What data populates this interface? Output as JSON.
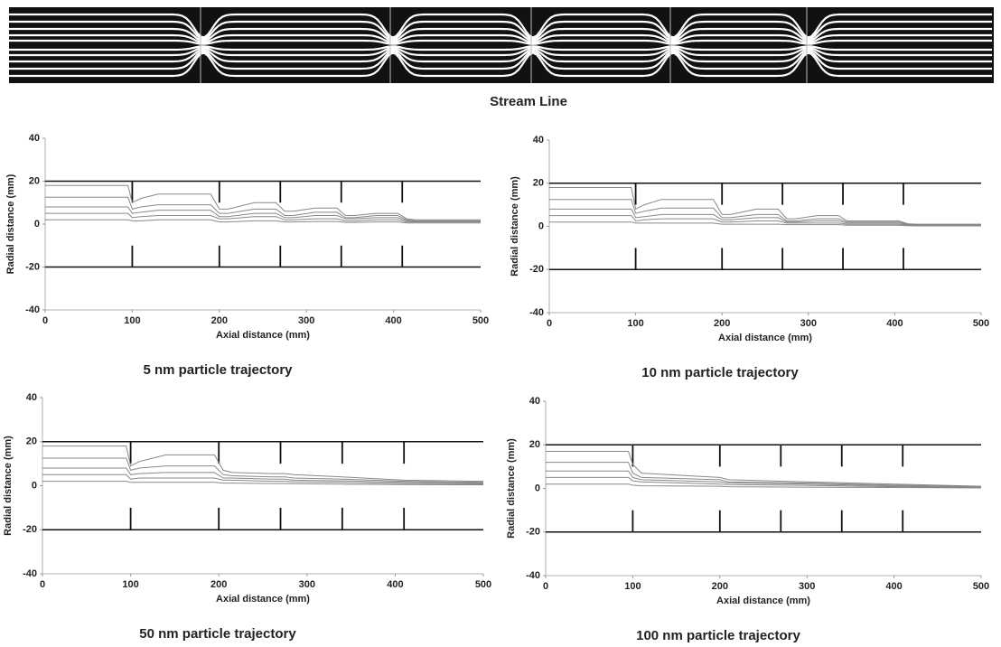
{
  "stream_line": {
    "caption": "Stream Line"
  },
  "chart_data": [
    {
      "type": "line",
      "title": "5 nm particle trajectory",
      "xlabel": "Axial distance (mm)",
      "ylabel": "Radial distance (mm)",
      "xlim": [
        0,
        500
      ],
      "ylim": [
        -40,
        40
      ],
      "xticks": [
        0,
        100,
        200,
        300,
        400,
        500
      ],
      "yticks": [
        -40,
        -20,
        0,
        20,
        40
      ],
      "wall_y": [
        20,
        -20
      ],
      "orifice_x": [
        100,
        200,
        270,
        340,
        410
      ],
      "orifice_inner": 10,
      "x": [
        0,
        95,
        100,
        110,
        130,
        190,
        200,
        210,
        240,
        265,
        275,
        285,
        310,
        335,
        345,
        355,
        380,
        405,
        415,
        425,
        500
      ],
      "series": [
        {
          "color": "#888888",
          "values": [
            18,
            18,
            10,
            12,
            14,
            14,
            7,
            7,
            10,
            10,
            6,
            6,
            7.5,
            7.5,
            4,
            4,
            5,
            5,
            2.5,
            2,
            2
          ]
        },
        {
          "color": "#888888",
          "values": [
            12.5,
            12.5,
            7,
            8,
            9,
            9,
            5,
            5,
            7,
            7,
            4,
            4,
            5.5,
            5.5,
            3,
            3,
            4,
            4,
            2,
            1.5,
            1.5
          ]
        },
        {
          "color": "#888888",
          "values": [
            8,
            8,
            5,
            5.5,
            6.5,
            6.5,
            3.5,
            3.5,
            5,
            5,
            3,
            3,
            4,
            4,
            2.5,
            2.5,
            3,
            3,
            1.5,
            1.2,
            1.2
          ]
        },
        {
          "color": "#888888",
          "values": [
            5,
            5,
            3,
            3.5,
            4,
            4,
            2.5,
            2.5,
            3.5,
            3.5,
            2,
            2,
            2.5,
            2.5,
            1.5,
            1.5,
            2,
            2,
            1,
            1,
            1
          ]
        },
        {
          "color": "#888888",
          "values": [
            2,
            2,
            1.5,
            1.5,
            2,
            2,
            1,
            1,
            1.5,
            1.5,
            1,
            1,
            1.2,
            1.2,
            0.8,
            0.8,
            1,
            1,
            0.5,
            0.5,
            0.5
          ]
        }
      ]
    },
    {
      "type": "line",
      "title": "10 nm particle trajectory",
      "xlabel": "Axial distance (mm)",
      "ylabel": "Radial distance (mm)",
      "xlim": [
        0,
        500
      ],
      "ylim": [
        -40,
        40
      ],
      "xticks": [
        0,
        100,
        200,
        300,
        400,
        500
      ],
      "yticks": [
        -40,
        -20,
        0,
        20,
        40
      ],
      "wall_y": [
        20,
        -20
      ],
      "orifice_x": [
        100,
        200,
        270,
        340,
        410
      ],
      "orifice_inner": 10,
      "x": [
        0,
        95,
        100,
        110,
        130,
        190,
        200,
        210,
        240,
        265,
        275,
        285,
        310,
        335,
        345,
        355,
        380,
        405,
        415,
        425,
        500
      ],
      "series": [
        {
          "color": "#888888",
          "values": [
            18,
            18,
            8,
            10,
            12.5,
            12.5,
            5.5,
            5.5,
            8,
            8,
            3.5,
            3.5,
            5,
            5,
            2.5,
            2.5,
            2.5,
            2.5,
            1.2,
            1,
            1
          ]
        },
        {
          "color": "#888888",
          "values": [
            12.5,
            12.5,
            6,
            7,
            8.5,
            8.5,
            4,
            4,
            5.5,
            5.5,
            2.5,
            2.5,
            3.5,
            3.5,
            2,
            2,
            2,
            2,
            1,
            0.8,
            0.8
          ]
        },
        {
          "color": "#888888",
          "values": [
            8,
            8,
            4,
            4.5,
            5.5,
            5.5,
            3,
            3,
            4,
            4,
            2,
            2,
            2.5,
            2.5,
            1.5,
            1.5,
            1.5,
            1.5,
            0.8,
            0.6,
            0.6
          ]
        },
        {
          "color": "#888888",
          "values": [
            5,
            5,
            2.5,
            3,
            3.5,
            3.5,
            2,
            2,
            2.5,
            2.5,
            1.5,
            1.5,
            1.5,
            1.5,
            1,
            1,
            1,
            1,
            0.5,
            0.4,
            0.4
          ]
        },
        {
          "color": "#888888",
          "values": [
            2,
            2,
            1.5,
            1.5,
            1.5,
            1.5,
            1,
            1,
            1,
            1,
            0.8,
            0.8,
            0.8,
            0.8,
            0.5,
            0.5,
            0.5,
            0.5,
            0.3,
            0.2,
            0.2
          ]
        }
      ]
    },
    {
      "type": "line",
      "title": "50 nm particle trajectory",
      "xlabel": "Axial distance (mm)",
      "ylabel": "Radial distance (mm)",
      "xlim": [
        0,
        500
      ],
      "ylim": [
        -40,
        40
      ],
      "xticks": [
        0,
        100,
        200,
        300,
        400,
        500
      ],
      "yticks": [
        -40,
        -20,
        0,
        20,
        40
      ],
      "wall_y": [
        20,
        -20
      ],
      "orifice_x": [
        100,
        200,
        270,
        340,
        410
      ],
      "orifice_inner": 10,
      "x": [
        0,
        95,
        100,
        110,
        140,
        195,
        205,
        215,
        260,
        275,
        285,
        340,
        410,
        500
      ],
      "series": [
        {
          "color": "#888888",
          "values": [
            18,
            18,
            9,
            11,
            14,
            14,
            7,
            6,
            5.5,
            5.5,
            5,
            4,
            2.5,
            2
          ]
        },
        {
          "color": "#888888",
          "values": [
            12.5,
            12.5,
            7,
            8,
            9,
            9,
            5,
            4.5,
            4,
            4,
            3.5,
            3,
            2,
            1.5
          ]
        },
        {
          "color": "#888888",
          "values": [
            8,
            8,
            5,
            5.5,
            6,
            6,
            3.5,
            3.5,
            3,
            3,
            2.5,
            2.2,
            1.5,
            1.2
          ]
        },
        {
          "color": "#888888",
          "values": [
            5,
            5,
            3,
            3.5,
            3.5,
            3.5,
            2.5,
            2.5,
            2,
            2,
            1.8,
            1.5,
            1,
            0.8
          ]
        },
        {
          "color": "#888888",
          "values": [
            2,
            2,
            1.5,
            1.5,
            1.5,
            1.5,
            1.2,
            1.2,
            1,
            1,
            0.9,
            0.7,
            0.5,
            0.4
          ]
        }
      ]
    },
    {
      "type": "line",
      "title": "100 nm particle trajectory",
      "xlabel": "Axial distance (mm)",
      "ylabel": "Radial distance (mm)",
      "xlim": [
        0,
        500
      ],
      "ylim": [
        -40,
        40
      ],
      "xticks": [
        0,
        100,
        200,
        300,
        400,
        500
      ],
      "yticks": [
        -40,
        -20,
        0,
        20,
        40
      ],
      "wall_y": [
        20,
        -20
      ],
      "orifice_x": [
        100,
        200,
        270,
        340,
        410
      ],
      "orifice_inner": 10,
      "x": [
        0,
        95,
        100,
        110,
        200,
        210,
        300,
        400,
        500
      ],
      "series": [
        {
          "color": "#888888",
          "values": [
            17,
            17,
            11,
            7,
            5,
            4,
            3,
            2,
            1
          ]
        },
        {
          "color": "#888888",
          "values": [
            12,
            12,
            7,
            5,
            4,
            3,
            2.5,
            1.5,
            0.8
          ]
        },
        {
          "color": "#888888",
          "values": [
            8,
            8,
            5,
            4,
            3,
            2.5,
            2,
            1.2,
            0.6
          ]
        },
        {
          "color": "#888888",
          "values": [
            5,
            5,
            3.5,
            3,
            2,
            1.8,
            1.4,
            0.8,
            0.4
          ]
        },
        {
          "color": "#888888",
          "values": [
            2,
            2,
            1.5,
            1.2,
            1,
            0.8,
            0.6,
            0.4,
            0.2
          ]
        }
      ]
    }
  ]
}
